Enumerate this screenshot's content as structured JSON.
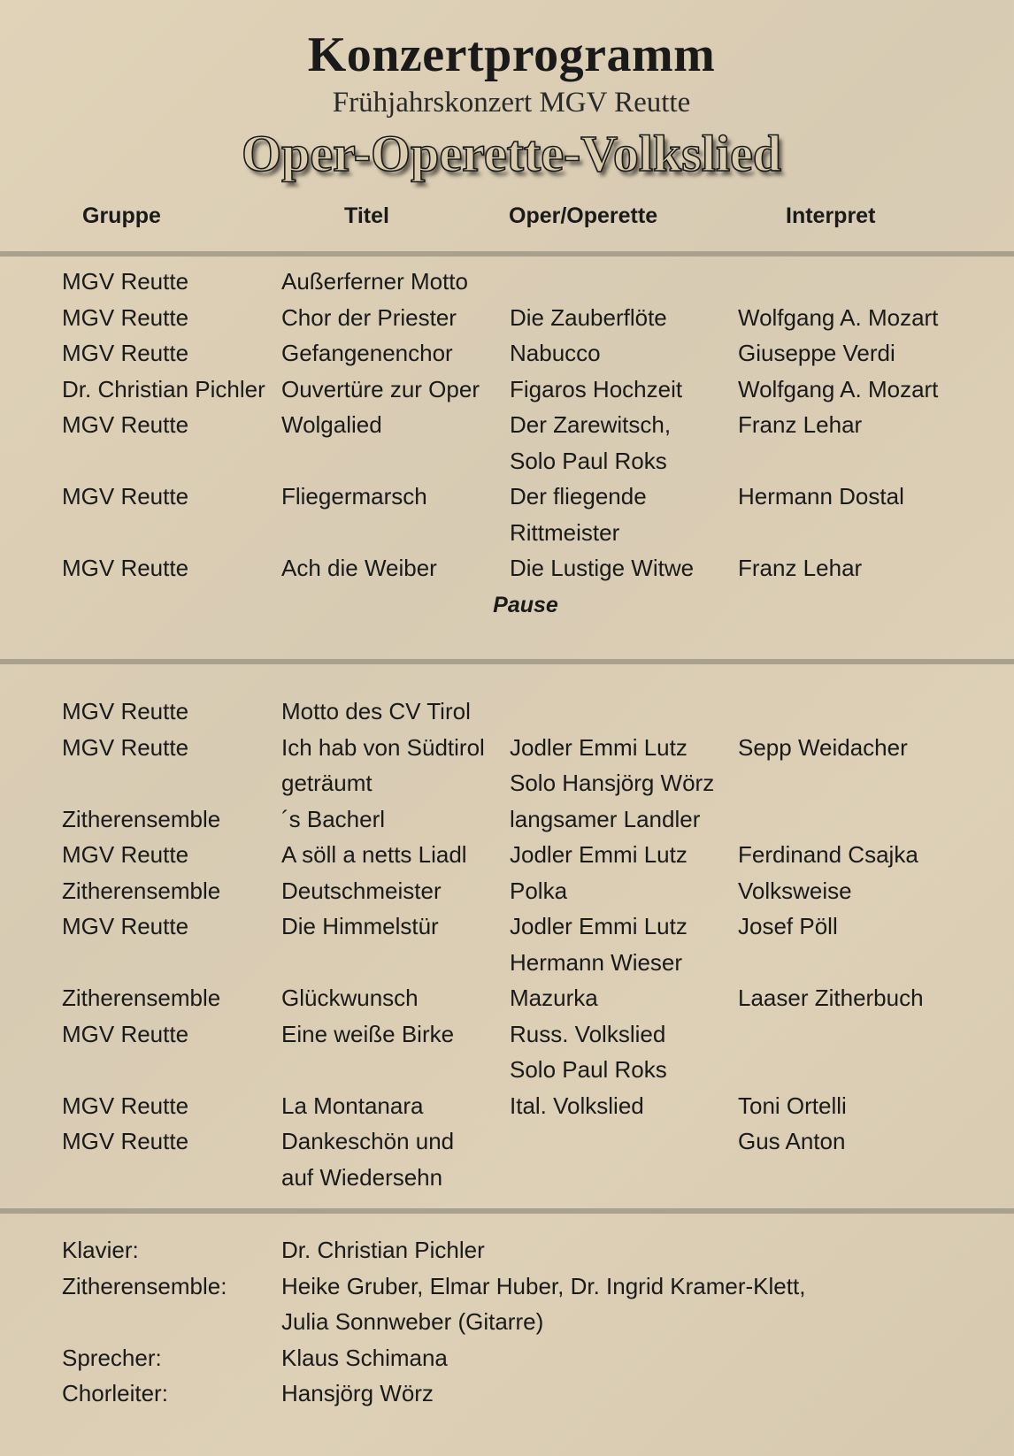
{
  "header": {
    "title": "Konzertprogramm",
    "subtitle": "Frühjahrskonzert MGV Reutte",
    "motto": "Oper-Operette-Volkslied"
  },
  "columns": [
    "Gruppe",
    "Titel",
    "Oper/Operette",
    "Interpret"
  ],
  "part1": [
    [
      "MGV Reutte",
      "Außerferner Motto",
      "",
      ""
    ],
    [
      "MGV Reutte",
      "Chor der Priester",
      "Die Zauberflöte",
      "Wolfgang A. Mozart"
    ],
    [
      "MGV Reutte",
      "Gefangenenchor",
      "Nabucco",
      "Giuseppe Verdi"
    ],
    [
      "Dr. Christian Pichler",
      "Ouvertüre zur Oper",
      "Figaros Hochzeit",
      "Wolfgang A. Mozart"
    ],
    [
      "MGV Reutte",
      "Wolgalied",
      "Der Zarewitsch,\nSolo Paul Roks",
      "Franz Lehar"
    ],
    [
      "MGV Reutte",
      "Fliegermarsch",
      "Der fliegende\nRittmeister",
      "Hermann Dostal"
    ],
    [
      "MGV Reutte",
      "Ach die Weiber",
      "Die Lustige Witwe",
      "Franz Lehar"
    ]
  ],
  "pause_label": "Pause",
  "part2": [
    [
      "MGV Reutte",
      "Motto des CV Tirol",
      "",
      ""
    ],
    [
      "MGV Reutte",
      "Ich hab von Südtirol\ngeträumt",
      "Jodler Emmi Lutz\nSolo Hansjörg Wörz",
      "Sepp Weidacher"
    ],
    [
      "Zitherensemble",
      "´s Bacherl",
      "langsamer Landler",
      ""
    ],
    [
      "MGV Reutte",
      "A söll a netts Liadl",
      "Jodler Emmi Lutz",
      "Ferdinand Csajka"
    ],
    [
      "Zitherensemble",
      "Deutschmeister",
      "Polka",
      "Volksweise"
    ],
    [
      "MGV Reutte",
      "Die Himmelstür",
      "Jodler Emmi Lutz\nHermann Wieser",
      "Josef Pöll"
    ],
    [
      "Zitherensemble",
      "Glückwunsch",
      "Mazurka",
      "Laaser Zitherbuch"
    ],
    [
      "MGV Reutte",
      "Eine weiße Birke",
      "Russ. Volkslied\nSolo Paul Roks",
      ""
    ],
    [
      "MGV Reutte",
      "La Montanara",
      "Ital. Volkslied",
      "Toni Ortelli"
    ],
    [
      "MGV Reutte",
      "Dankeschön und\nauf Wiedersehn",
      "",
      "Gus Anton"
    ]
  ],
  "credits": [
    [
      "Klavier:",
      "Dr. Christian Pichler"
    ],
    [
      "Zitherensemble:",
      "Heike Gruber, Elmar Huber, Dr. Ingrid Kramer-Klett,\nJulia Sonnweber (Gitarre)"
    ],
    [
      "Sprecher:",
      "Klaus Schimana"
    ],
    [
      "Chorleiter:",
      "Hansjörg Wörz"
    ]
  ]
}
